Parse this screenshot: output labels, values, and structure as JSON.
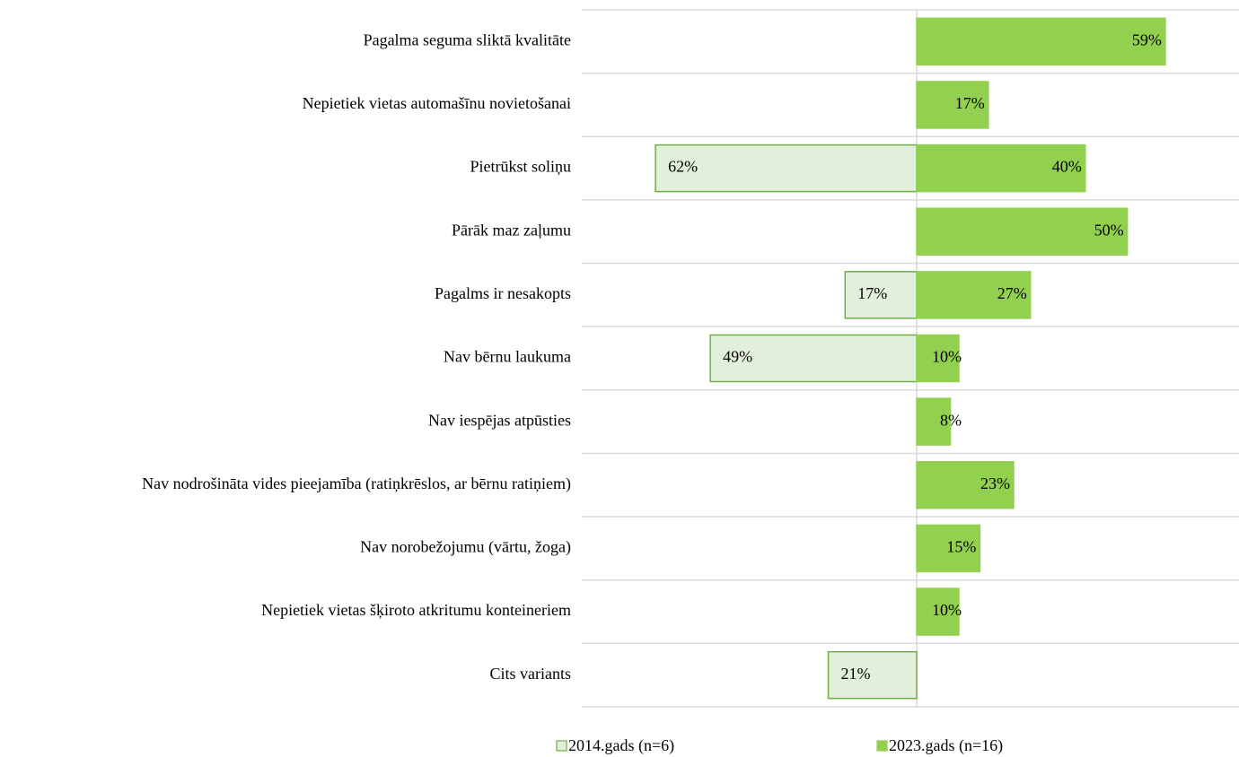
{
  "chart_data": {
    "type": "diverging-bar",
    "categories": [
      "Pagalma seguma sliktā kvalitāte",
      "Nepietiek vietas automašīnu novietošanai",
      "Pietrūkst soliņu",
      "Pārāk maz zaļumu",
      "Pagalms ir nesakopts",
      "Nav bērnu laukuma",
      "Nav iespējas atpūsties",
      "Nav nodrošināta vides pieejamība (ratiņkrēslos, ar bērnu ratiņiem)",
      "Nav norobežojumu (vārtu, žoga)",
      "Nepietiek vietas šķiroto atkritumu konteineriem",
      "Cits variants"
    ],
    "series": [
      {
        "name": "2014.gads (n=6)",
        "color": "#e2efda",
        "border": "#70ad47",
        "side": "left",
        "values": [
          null,
          null,
          62,
          null,
          17,
          49,
          null,
          null,
          null,
          null,
          21
        ],
        "value_labels": [
          null,
          null,
          "62%",
          null,
          "17%",
          "49%",
          null,
          null,
          null,
          null,
          "21%"
        ]
      },
      {
        "name": "2023.gads (n=16)",
        "color": "#92d050",
        "border": "#92d050",
        "side": "right",
        "values": [
          59,
          17,
          40,
          50,
          27,
          10,
          8,
          23,
          15,
          10,
          null
        ],
        "value_labels": [
          "59%",
          "17%",
          "40%",
          "50%",
          "27%",
          "10%",
          "8%",
          "23%",
          "15%",
          "10%",
          null
        ]
      }
    ],
    "xlim": [
      -79.5,
      76.5
    ],
    "grid": true,
    "legend": "bottom"
  }
}
